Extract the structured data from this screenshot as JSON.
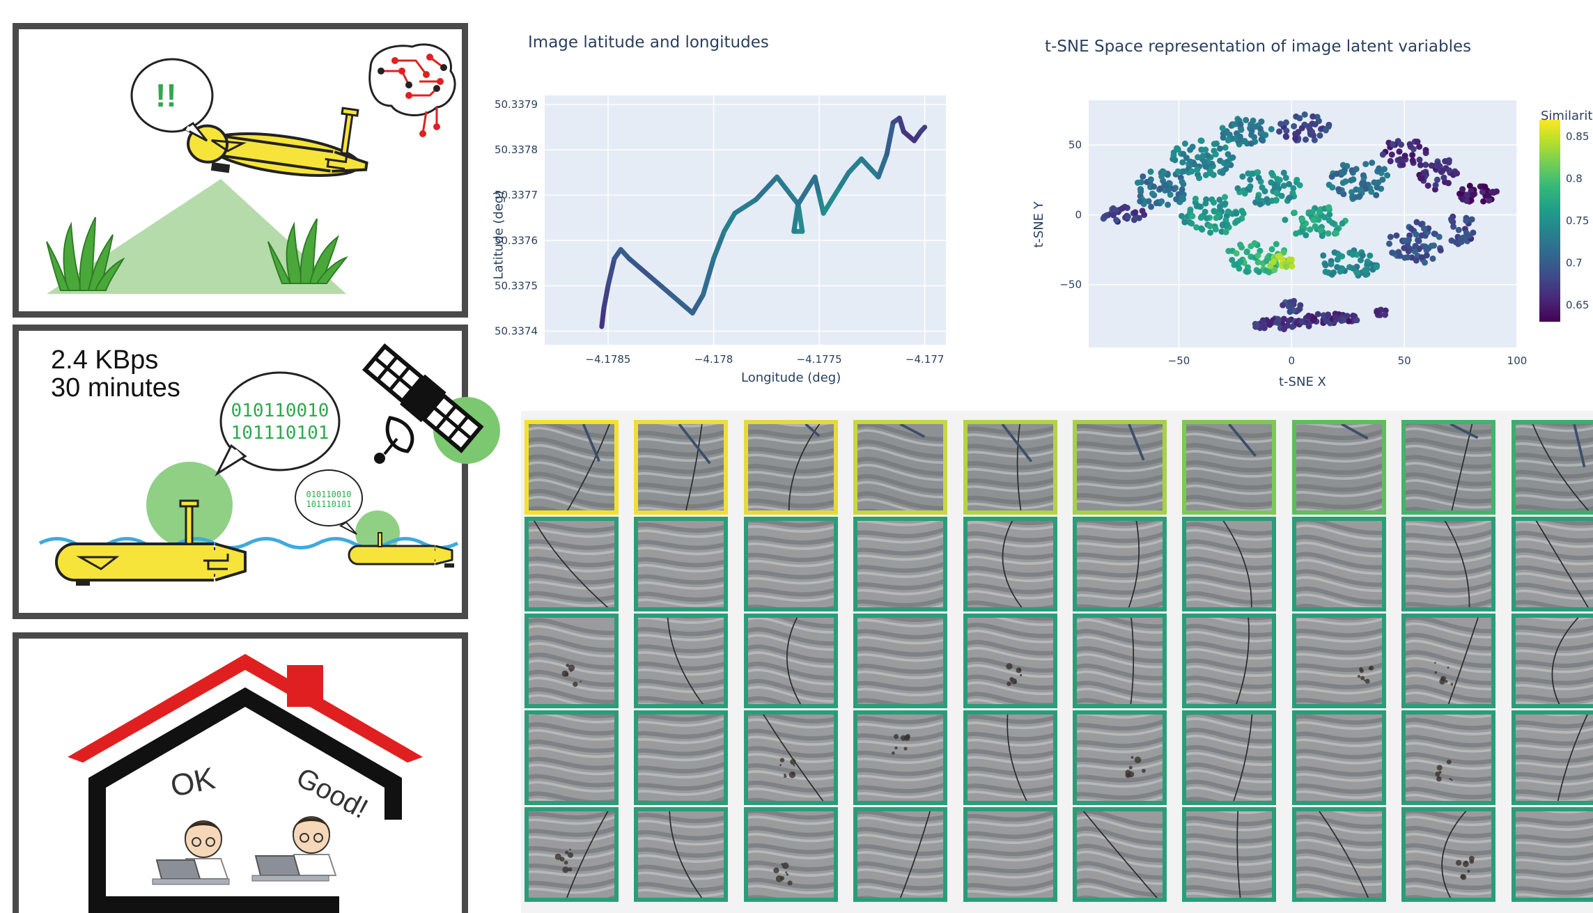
{
  "panel_scout": {
    "alert_text": "!!"
  },
  "panel_comms": {
    "speed": "2.4 KBps",
    "duration": "30 minutes",
    "big_binary_line1": "010110010",
    "big_binary_line2": "101110101",
    "small_binary_line1": "010110010",
    "small_binary_line2": "101110101"
  },
  "panel_home": {
    "word_ok": "OK",
    "word_good": "Good!"
  },
  "colors": {
    "vehicle_yellow": "#f7e43a",
    "grass_green": "#4aa83a",
    "roof_red": "#e02020",
    "wave_blue": "#3fa9e0",
    "signal_green": "#7cc870",
    "plot_bg": "#e5ecf6"
  },
  "chart_data": [
    {
      "type": "line",
      "title": "Image latitude and longitudes",
      "xlabel": "Longitude (deg)",
      "ylabel": "Latitude (deg)",
      "xlim": [
        -4.1788,
        -4.1769
      ],
      "ylim": [
        50.33737,
        50.33792
      ],
      "xticks": [
        -4.1785,
        -4.178,
        -4.1775,
        -4.177
      ],
      "xtick_labels": [
        "−4.1785",
        "−4.178",
        "−4.1775",
        "−4.177"
      ],
      "yticks": [
        50.3374,
        50.3375,
        50.3376,
        50.3377,
        50.3378,
        50.3379
      ],
      "ytick_labels": [
        "50.3374",
        "50.3375",
        "50.3376",
        "50.3377",
        "50.3378",
        "50.3379"
      ],
      "grid": true,
      "x": [
        -4.17853,
        -4.17852,
        -4.1785,
        -4.17847,
        -4.17844,
        -4.1784,
        -4.17835,
        -4.1783,
        -4.17825,
        -4.1782,
        -4.17815,
        -4.1781,
        -4.17805,
        -4.178,
        -4.17795,
        -4.1779,
        -4.1778,
        -4.1777,
        -4.1776,
        -4.17758,
        -4.17762,
        -4.1776,
        -4.17752,
        -4.1775,
        -4.17748,
        -4.1774,
        -4.17736,
        -4.1773,
        -4.17722,
        -4.17718,
        -4.17715,
        -4.17712,
        -4.1771,
        -4.17705,
        -4.17702,
        -4.177
      ],
      "y": [
        50.33741,
        50.33745,
        50.3375,
        50.33756,
        50.33758,
        50.33756,
        50.33754,
        50.33752,
        50.3375,
        50.33748,
        50.33746,
        50.33744,
        50.33748,
        50.33756,
        50.33762,
        50.33766,
        50.33769,
        50.33774,
        50.33768,
        50.33762,
        50.33762,
        50.33768,
        50.33774,
        50.3377,
        50.33766,
        50.33772,
        50.33775,
        50.33778,
        50.33774,
        50.33779,
        50.33786,
        50.33787,
        50.33784,
        50.33782,
        50.33784,
        50.33785
      ],
      "color_by": "Similarity",
      "similarity": [
        0.66,
        0.67,
        0.68,
        0.69,
        0.7,
        0.7,
        0.69,
        0.69,
        0.7,
        0.7,
        0.71,
        0.7,
        0.71,
        0.72,
        0.73,
        0.74,
        0.72,
        0.72,
        0.74,
        0.75,
        0.74,
        0.73,
        0.71,
        0.73,
        0.75,
        0.74,
        0.73,
        0.74,
        0.72,
        0.71,
        0.69,
        0.68,
        0.67,
        0.66,
        0.67,
        0.68
      ]
    },
    {
      "type": "scatter",
      "title": "t-SNE Space representation of image latent variables",
      "xlabel": "t-SNE X",
      "ylabel": "t-SNE Y",
      "xlim": [
        -90,
        100
      ],
      "ylim": [
        -95,
        82
      ],
      "xticks": [
        -50,
        0,
        50,
        100
      ],
      "xtick_labels": [
        "−50",
        "0",
        "50",
        "100"
      ],
      "yticks": [
        -50,
        0,
        50
      ],
      "ytick_labels": [
        "−50",
        "0",
        "50"
      ],
      "grid": true,
      "colorbar_title": "Similarit",
      "colorbar_range": [
        0.63,
        0.87
      ],
      "colorbar_ticks": [
        0.65,
        0.7,
        0.75,
        0.8,
        0.85
      ],
      "colorbar_tick_labels": [
        "0.65",
        "0.7",
        "0.75",
        "0.8",
        "0.85"
      ],
      "clusters": [
        {
          "cx": -75,
          "cy": 0,
          "rx": 10,
          "ry": 6,
          "n": 30,
          "sim": 0.67
        },
        {
          "cx": -58,
          "cy": 18,
          "rx": 12,
          "ry": 14,
          "n": 60,
          "sim": 0.72
        },
        {
          "cx": -40,
          "cy": 40,
          "rx": 14,
          "ry": 14,
          "n": 70,
          "sim": 0.74
        },
        {
          "cx": -20,
          "cy": 60,
          "rx": 12,
          "ry": 10,
          "n": 50,
          "sim": 0.73
        },
        {
          "cx": 5,
          "cy": 62,
          "rx": 12,
          "ry": 10,
          "n": 40,
          "sim": 0.68
        },
        {
          "cx": -35,
          "cy": 0,
          "rx": 14,
          "ry": 14,
          "n": 70,
          "sim": 0.76
        },
        {
          "cx": -10,
          "cy": 20,
          "rx": 14,
          "ry": 14,
          "n": 60,
          "sim": 0.75
        },
        {
          "cx": -15,
          "cy": -30,
          "rx": 14,
          "ry": 12,
          "n": 60,
          "sim": 0.78
        },
        {
          "cx": -5,
          "cy": -35,
          "rx": 6,
          "ry": 6,
          "n": 20,
          "sim": 0.83
        },
        {
          "cx": 10,
          "cy": -5,
          "rx": 14,
          "ry": 12,
          "n": 50,
          "sim": 0.77
        },
        {
          "cx": 25,
          "cy": -35,
          "rx": 14,
          "ry": 10,
          "n": 50,
          "sim": 0.74
        },
        {
          "cx": 30,
          "cy": 25,
          "rx": 14,
          "ry": 14,
          "n": 60,
          "sim": 0.72
        },
        {
          "cx": 50,
          "cy": 45,
          "rx": 10,
          "ry": 10,
          "n": 30,
          "sim": 0.66
        },
        {
          "cx": 55,
          "cy": -20,
          "rx": 12,
          "ry": 16,
          "n": 60,
          "sim": 0.69
        },
        {
          "cx": 65,
          "cy": 30,
          "rx": 10,
          "ry": 12,
          "n": 40,
          "sim": 0.66
        },
        {
          "cx": 82,
          "cy": 15,
          "rx": 10,
          "ry": 6,
          "n": 35,
          "sim": 0.64
        },
        {
          "cx": 75,
          "cy": -10,
          "rx": 6,
          "ry": 12,
          "n": 25,
          "sim": 0.68
        },
        {
          "cx": -5,
          "cy": -78,
          "rx": 14,
          "ry": 4,
          "n": 50,
          "sim": 0.67
        },
        {
          "cx": 18,
          "cy": -74,
          "rx": 12,
          "ry": 4,
          "n": 40,
          "sim": 0.66
        },
        {
          "cx": 0,
          "cy": -65,
          "rx": 4,
          "ry": 6,
          "n": 15,
          "sim": 0.68
        },
        {
          "cx": 40,
          "cy": -70,
          "rx": 3,
          "ry": 3,
          "n": 8,
          "sim": 0.66
        }
      ]
    }
  ],
  "gallery": {
    "columns": 10,
    "rows": 5,
    "row_colors": [
      "#f2e234",
      "#2a9d78",
      "#2a9d78",
      "#2a9d78",
      "#2a9d78"
    ],
    "top_row_colors": [
      "#f6e02c",
      "#f0dd35",
      "#e6d93c",
      "#c8d640",
      "#b5d243",
      "#a8cf48",
      "#7ec853",
      "#5fbd5e",
      "#42b36a",
      "#3aae6d"
    ]
  }
}
